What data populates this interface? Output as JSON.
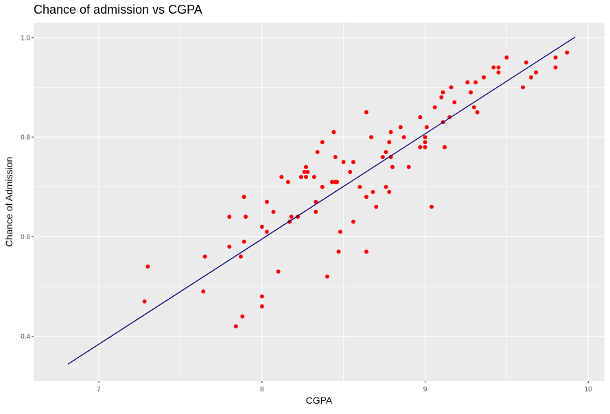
{
  "chart_data": {
    "type": "scatter",
    "title": "Chance of admission vs CGPA",
    "xlabel": "CGPA",
    "ylabel": "Chance of Admission",
    "xlim": [
      6.6,
      10.1
    ],
    "ylim": [
      0.31,
      1.03
    ],
    "x_ticks": [
      7,
      8,
      9,
      10
    ],
    "x_tick_labels": [
      "7",
      "8",
      "9",
      "10"
    ],
    "y_ticks": [
      0.4,
      0.6,
      0.8,
      1.0
    ],
    "y_tick_labels": [
      "0.4",
      "0.6",
      "0.8",
      "1.0"
    ],
    "grid": true,
    "point_color": "#ff0000",
    "line_color": "#000080",
    "panel_color": "#ebebeb",
    "grid_color": "#ffffff",
    "points": [
      [
        7.28,
        0.47
      ],
      [
        7.3,
        0.54
      ],
      [
        7.64,
        0.49
      ],
      [
        7.65,
        0.56
      ],
      [
        7.8,
        0.64
      ],
      [
        7.8,
        0.58
      ],
      [
        7.84,
        0.42
      ],
      [
        7.87,
        0.56
      ],
      [
        7.88,
        0.44
      ],
      [
        7.89,
        0.59
      ],
      [
        7.89,
        0.68
      ],
      [
        7.9,
        0.64
      ],
      [
        8.0,
        0.62
      ],
      [
        8.0,
        0.48
      ],
      [
        8.0,
        0.46
      ],
      [
        8.03,
        0.67
      ],
      [
        8.03,
        0.61
      ],
      [
        8.07,
        0.65
      ],
      [
        8.1,
        0.53
      ],
      [
        8.12,
        0.72
      ],
      [
        8.16,
        0.71
      ],
      [
        8.17,
        0.63
      ],
      [
        8.18,
        0.64
      ],
      [
        8.22,
        0.64
      ],
      [
        8.24,
        0.72
      ],
      [
        8.26,
        0.73
      ],
      [
        8.27,
        0.74
      ],
      [
        8.27,
        0.72
      ],
      [
        8.28,
        0.73
      ],
      [
        8.32,
        0.72
      ],
      [
        8.33,
        0.67
      ],
      [
        8.33,
        0.65
      ],
      [
        8.34,
        0.77
      ],
      [
        8.37,
        0.79
      ],
      [
        8.37,
        0.7
      ],
      [
        8.4,
        0.52
      ],
      [
        8.43,
        0.71
      ],
      [
        8.44,
        0.81
      ],
      [
        8.45,
        0.76
      ],
      [
        8.45,
        0.71
      ],
      [
        8.46,
        0.71
      ],
      [
        8.47,
        0.57
      ],
      [
        8.48,
        0.61
      ],
      [
        8.5,
        0.75
      ],
      [
        8.54,
        0.73
      ],
      [
        8.56,
        0.75
      ],
      [
        8.56,
        0.63
      ],
      [
        8.6,
        0.7
      ],
      [
        8.64,
        0.85
      ],
      [
        8.64,
        0.68
      ],
      [
        8.64,
        0.57
      ],
      [
        8.67,
        0.8
      ],
      [
        8.68,
        0.69
      ],
      [
        8.7,
        0.66
      ],
      [
        8.74,
        0.76
      ],
      [
        8.76,
        0.77
      ],
      [
        8.76,
        0.7
      ],
      [
        8.78,
        0.79
      ],
      [
        8.78,
        0.69
      ],
      [
        8.79,
        0.81
      ],
      [
        8.79,
        0.76
      ],
      [
        8.8,
        0.74
      ],
      [
        8.85,
        0.82
      ],
      [
        8.87,
        0.8
      ],
      [
        8.9,
        0.74
      ],
      [
        8.97,
        0.84
      ],
      [
        8.97,
        0.78
      ],
      [
        9.0,
        0.8
      ],
      [
        9.0,
        0.79
      ],
      [
        9.0,
        0.78
      ],
      [
        9.01,
        0.82
      ],
      [
        9.04,
        0.66
      ],
      [
        9.06,
        0.86
      ],
      [
        9.1,
        0.88
      ],
      [
        9.11,
        0.89
      ],
      [
        9.11,
        0.83
      ],
      [
        9.12,
        0.78
      ],
      [
        9.15,
        0.84
      ],
      [
        9.16,
        0.9
      ],
      [
        9.18,
        0.87
      ],
      [
        9.26,
        0.91
      ],
      [
        9.28,
        0.89
      ],
      [
        9.3,
        0.86
      ],
      [
        9.31,
        0.91
      ],
      [
        9.32,
        0.85
      ],
      [
        9.36,
        0.92
      ],
      [
        9.42,
        0.94
      ],
      [
        9.45,
        0.94
      ],
      [
        9.45,
        0.93
      ],
      [
        9.5,
        0.96
      ],
      [
        9.6,
        0.9
      ],
      [
        9.62,
        0.95
      ],
      [
        9.65,
        0.92
      ],
      [
        9.68,
        0.93
      ],
      [
        9.8,
        0.96
      ],
      [
        9.8,
        0.94
      ],
      [
        9.87,
        0.97
      ]
    ],
    "regression_line": {
      "x": [
        6.81,
        9.92
      ],
      "y": [
        0.344,
        1.001
      ]
    }
  }
}
